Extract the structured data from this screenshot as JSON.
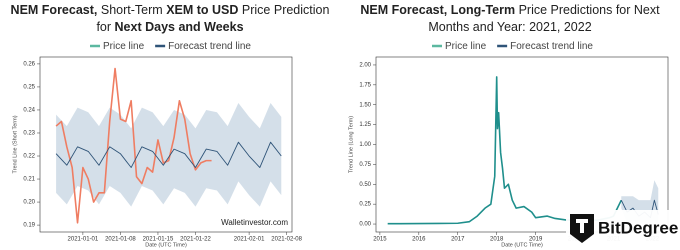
{
  "chart_data": [
    {
      "type": "line",
      "title_parts": [
        {
          "text": "NEM Forecast,",
          "bold": true
        },
        {
          "text": "Short-Term",
          "bold": false
        },
        {
          "text": "XEM to USD",
          "bold": true
        },
        {
          "text": "Price Prediction for",
          "bold": false
        },
        {
          "text": "Next Days and Weeks",
          "bold": true
        }
      ],
      "x_label": "Date (UTC Time)",
      "y_label": "Trend Line (Short Term)",
      "watermark": "Walletinvestor.com",
      "xlim": [
        "2020-12-24",
        "2021-02-09"
      ],
      "ylim": [
        0.187,
        0.263
      ],
      "xticks": [
        "2021-01-01",
        "2021-01-08",
        "2021-01-15",
        "2021-01-22",
        "2021-02-01",
        "2021-02-08"
      ],
      "yticks": [
        0.19,
        {
          "value": 0.2,
          "label": "0.20"
        },
        0.21,
        0.22,
        0.23,
        0.24,
        0.25,
        0.26
      ],
      "series": [
        {
          "name": "Price line",
          "color": "#ef7d62",
          "legend_color": "#5cb8a0",
          "x": [
            "2020-12-27",
            "2020-12-28",
            "2020-12-29",
            "2020-12-30",
            "2020-12-31",
            "2021-01-01",
            "2021-01-02",
            "2021-01-03",
            "2021-01-04",
            "2021-01-05",
            "2021-01-06",
            "2021-01-07",
            "2021-01-08",
            "2021-01-09",
            "2021-01-10",
            "2021-01-11",
            "2021-01-12",
            "2021-01-13",
            "2021-01-14",
            "2021-01-15",
            "2021-01-16",
            "2021-01-17",
            "2021-01-18",
            "2021-01-19",
            "2021-01-20",
            "2021-01-21",
            "2021-01-22",
            "2021-01-23",
            "2021-01-24",
            "2021-01-25"
          ],
          "values": [
            0.233,
            0.235,
            0.224,
            0.215,
            0.191,
            0.215,
            0.21,
            0.2,
            0.204,
            0.204,
            0.235,
            0.258,
            0.236,
            0.235,
            0.244,
            0.211,
            0.208,
            0.215,
            0.213,
            0.227,
            0.217,
            0.218,
            0.228,
            0.244,
            0.236,
            0.221,
            0.214,
            0.217,
            0.218,
            0.218
          ]
        },
        {
          "name": "Forecast trend line",
          "color": "#2f5478",
          "legend_color": "#2f5478",
          "band_color": "#c9d7e3",
          "x": [
            "2020-12-27",
            "2020-12-29",
            "2020-12-31",
            "2021-01-02",
            "2021-01-04",
            "2021-01-06",
            "2021-01-08",
            "2021-01-10",
            "2021-01-12",
            "2021-01-14",
            "2021-01-16",
            "2021-01-18",
            "2021-01-20",
            "2021-01-22",
            "2021-01-24",
            "2021-01-26",
            "2021-01-28",
            "2021-01-30",
            "2021-02-01",
            "2021-02-03",
            "2021-02-05",
            "2021-02-07"
          ],
          "values": [
            0.221,
            0.216,
            0.224,
            0.222,
            0.216,
            0.224,
            0.221,
            0.215,
            0.224,
            0.222,
            0.216,
            0.223,
            0.221,
            0.215,
            0.223,
            0.222,
            0.216,
            0.226,
            0.22,
            0.215,
            0.226,
            0.22
          ],
          "band_upper": [
            0.238,
            0.233,
            0.241,
            0.239,
            0.233,
            0.241,
            0.238,
            0.232,
            0.241,
            0.239,
            0.233,
            0.24,
            0.238,
            0.232,
            0.24,
            0.239,
            0.233,
            0.243,
            0.237,
            0.232,
            0.243,
            0.237
          ],
          "band_lower": [
            0.204,
            0.199,
            0.207,
            0.205,
            0.199,
            0.207,
            0.204,
            0.198,
            0.207,
            0.205,
            0.199,
            0.206,
            0.204,
            0.198,
            0.206,
            0.205,
            0.199,
            0.209,
            0.203,
            0.198,
            0.209,
            0.203
          ]
        }
      ]
    },
    {
      "type": "line",
      "title_parts": [
        {
          "text": "NEM Forecast,",
          "bold": true
        },
        {
          "text": "Long-Term",
          "bold": true
        },
        {
          "text": "Price Predictions for Next Months and Year: 2021, 2022",
          "bold": false
        }
      ],
      "x_label": "Date (UTC Time)",
      "y_label": "Trend Line (Long Term)",
      "xlim": [
        2014.9,
        2022.4
      ],
      "ylim": [
        -0.1,
        2.1
      ],
      "xticks": [
        2015,
        2016,
        2017,
        2018,
        2019,
        2020,
        2021,
        2022
      ],
      "yticks": [
        {
          "value": 0,
          "label": "0.00"
        },
        0.25,
        {
          "value": 0.5,
          "label": "0.50"
        },
        0.75,
        {
          "value": 1,
          "label": "1.00"
        },
        1.25,
        {
          "value": 1.5,
          "label": "1.50"
        },
        1.75,
        {
          "value": 2,
          "label": "2.00"
        }
      ],
      "series": [
        {
          "name": "Price line",
          "color": "#1f8f8c",
          "legend_color": "#5cb8a0",
          "x": [
            2015.2,
            2015.5,
            2016,
            2016.5,
            2017,
            2017.3,
            2017.5,
            2017.7,
            2017.85,
            2017.95,
            2018.0,
            2018.02,
            2018.05,
            2018.1,
            2018.15,
            2018.2,
            2018.3,
            2018.4,
            2018.5,
            2018.7,
            2018.9,
            2019.0,
            2019.3,
            2019.5,
            2019.8,
            2020.0,
            2020.3,
            2020.6,
            2020.9,
            2021.0,
            2021.1,
            2021.2
          ],
          "values": [
            0.005,
            0.005,
            0.006,
            0.008,
            0.01,
            0.03,
            0.1,
            0.2,
            0.25,
            0.6,
            1.85,
            1.2,
            1.4,
            0.9,
            0.7,
            0.45,
            0.5,
            0.3,
            0.2,
            0.22,
            0.15,
            0.08,
            0.1,
            0.07,
            0.05,
            0.05,
            0.04,
            0.05,
            0.08,
            0.1,
            0.2,
            0.3
          ]
        },
        {
          "name": "Forecast trend line",
          "color": "#2f5478",
          "legend_color": "#2f5478",
          "band_color": "#c9d7e3",
          "x": [
            2021.2,
            2021.35,
            2021.5,
            2021.65,
            2021.8,
            2021.95,
            2022.05,
            2022.15
          ],
          "values": [
            0.3,
            0.15,
            0.2,
            0.1,
            0.15,
            0.08,
            0.3,
            0.12
          ],
          "band_upper": [
            0.35,
            0.35,
            0.35,
            0.3,
            0.3,
            0.3,
            0.55,
            0.45
          ],
          "band_lower": [
            0.2,
            0.01,
            0.05,
            0.01,
            0.02,
            0.01,
            0.05,
            0.01
          ]
        }
      ]
    }
  ],
  "logo": "BitDegree"
}
